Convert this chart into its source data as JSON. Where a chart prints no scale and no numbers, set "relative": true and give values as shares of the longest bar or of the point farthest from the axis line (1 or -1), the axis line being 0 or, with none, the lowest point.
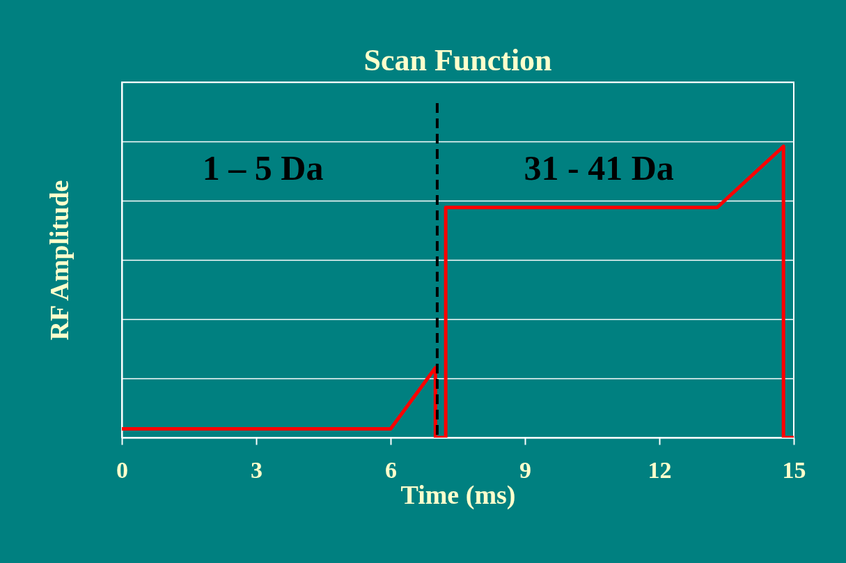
{
  "chart_data": {
    "type": "line",
    "title": "Scan Function",
    "xlabel": "Time (ms)",
    "ylabel": "RF Amplitude",
    "relative": true,
    "xlim": [
      0,
      15
    ],
    "xticks": [
      0,
      3,
      6,
      9,
      12,
      15
    ],
    "grid": "y",
    "line_style": "solid",
    "marker": "none",
    "x": [
      0,
      6.0,
      7.0,
      7.0,
      7.23,
      7.23,
      13.29,
      14.77,
      14.77,
      15
    ],
    "series": [
      {
        "color": "#ff0000",
        "values": [
          0.03,
          0.03,
          0.24,
          0,
          0,
          0.79,
          0.79,
          1,
          0,
          0
        ]
      }
    ],
    "ref_lines": [
      {
        "axis": "x",
        "value": 7.04,
        "color": "#000000",
        "line_style": "dashed"
      }
    ],
    "annotations": [
      "1 – 5 Da",
      "31 - 41 Da"
    ]
  }
}
